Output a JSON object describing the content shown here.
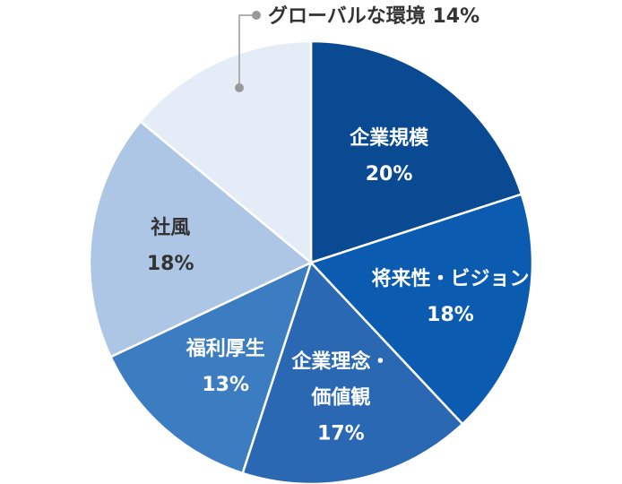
{
  "chart_data": {
    "type": "pie",
    "title": "",
    "start": "12 o'clock",
    "direction": "clockwise",
    "slices": [
      {
        "label_lines": [
          "企業規模"
        ],
        "value": 20,
        "value_label": "20%",
        "color": "#0a4a93",
        "text_color": "#ffffff"
      },
      {
        "label_lines": [
          "将来性・ビジョン"
        ],
        "value": 18,
        "value_label": "18%",
        "color": "#0b5bb0",
        "text_color": "#ffffff"
      },
      {
        "label_lines": [
          "企業理念・",
          "価値観"
        ],
        "value": 17,
        "value_label": "17%",
        "color": "#2a68b4",
        "text_color": "#ffffff"
      },
      {
        "label_lines": [
          "福利厚生"
        ],
        "value": 13,
        "value_label": "13%",
        "color": "#3c7cc0",
        "text_color": "#ffffff"
      },
      {
        "label_lines": [
          "社風"
        ],
        "value": 18,
        "value_label": "18%",
        "color": "#adc6e5",
        "text_color": "#333333"
      },
      {
        "label_lines": [
          "グローバルな環境"
        ],
        "value": 14,
        "value_label": "14%",
        "color": "#e4edf7",
        "text_color": "#333333",
        "callout": true
      }
    ]
  }
}
